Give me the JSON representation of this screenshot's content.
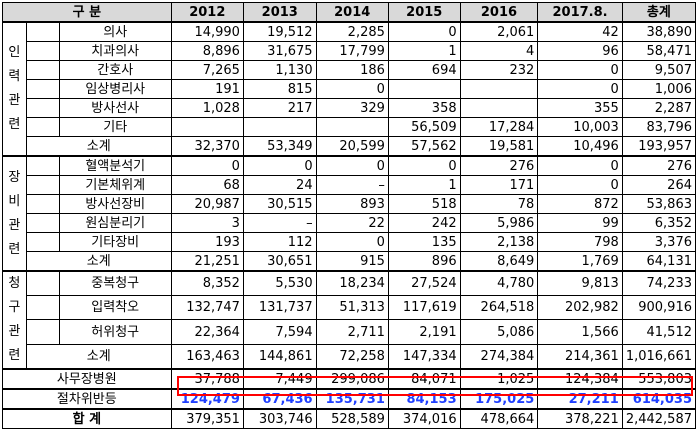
{
  "table": {
    "header": {
      "label": "구  분",
      "years": [
        "2012",
        "2013",
        "2014",
        "2015",
        "2016",
        "2017.8.",
        "총계"
      ]
    },
    "groups": [
      {
        "category_chars": [
          "인",
          "력",
          "관",
          "련"
        ],
        "rows": [
          {
            "label": "의사",
            "values": [
              "14,990",
              "19,512",
              "2,285",
              "0",
              "2,061",
              "42",
              "38,890"
            ]
          },
          {
            "label": "치과의사",
            "values": [
              "8,896",
              "31,675",
              "17,799",
              "1",
              "4",
              "96",
              "58,471"
            ]
          },
          {
            "label": "간호사",
            "values": [
              "7,265",
              "1,130",
              "186",
              "694",
              "232",
              "0",
              "9,507"
            ]
          },
          {
            "label": "임상병리사",
            "values": [
              "191",
              "815",
              "0",
              "",
              "",
              "0",
              "1,006"
            ]
          },
          {
            "label": "방사선사",
            "values": [
              "1,028",
              "217",
              "329",
              "358",
              "",
              "355",
              "2,287"
            ]
          },
          {
            "label": "기타",
            "values": [
              "",
              "",
              "",
              "56,509",
              "17,284",
              "10,003",
              "83,796"
            ]
          },
          {
            "label": "소계",
            "values": [
              "32,370",
              "53,349",
              "20,599",
              "57,562",
              "19,581",
              "10,496",
              "193,957"
            ]
          }
        ]
      },
      {
        "category_chars": [
          "장",
          "비",
          "관",
          "련"
        ],
        "rows": [
          {
            "label": "혈액분석기",
            "values": [
              "0",
              "0",
              "0",
              "0",
              "276",
              "0",
              "276"
            ]
          },
          {
            "label": "기본체위계",
            "values": [
              "68",
              "24",
              "–",
              "1",
              "171",
              "0",
              "264"
            ]
          },
          {
            "label": "방사선장비",
            "values": [
              "20,987",
              "30,515",
              "893",
              "518",
              "78",
              "872",
              "53,863"
            ]
          },
          {
            "label": "원심분리기",
            "values": [
              "3",
              "–",
              "22",
              "242",
              "5,986",
              "99",
              "6,352"
            ]
          },
          {
            "label": "기타장비",
            "values": [
              "193",
              "112",
              "0",
              "135",
              "2,138",
              "798",
              "3,376"
            ]
          },
          {
            "label": "소계",
            "values": [
              "21,251",
              "30,651",
              "915",
              "896",
              "8,649",
              "1,769",
              "64,131"
            ]
          }
        ]
      },
      {
        "category_chars": [
          "청",
          "구",
          "관",
          "련"
        ],
        "rows": [
          {
            "label": "중복청구",
            "values": [
              "8,352",
              "5,530",
              "18,234",
              "27,524",
              "4,780",
              "9,813",
              "74,233"
            ]
          },
          {
            "label": "입력착오",
            "values": [
              "132,747",
              "131,737",
              "51,313",
              "117,619",
              "264,518",
              "202,982",
              "900,916"
            ]
          },
          {
            "label": "허위청구",
            "values": [
              "22,364",
              "7,594",
              "2,711",
              "2,191",
              "5,086",
              "1,566",
              "41,512"
            ]
          },
          {
            "label": "소계",
            "values": [
              "163,463",
              "144,861",
              "72,258",
              "147,334",
              "274,384",
              "214,361",
              "1,016,661"
            ]
          }
        ]
      }
    ],
    "office": {
      "label": "사무장병원",
      "values": [
        "37,788",
        "7,449",
        "299,086",
        "84,071",
        "1,025",
        "124,384",
        "553,803"
      ]
    },
    "procedure": {
      "label": "절차위반등",
      "values": [
        "124,479",
        "67,436",
        "135,731",
        "84,153",
        "175,025",
        "27,211",
        "614,035"
      ]
    },
    "total": {
      "label": "합  계",
      "values": [
        "379,351",
        "303,746",
        "528,589",
        "374,016",
        "478,664",
        "378,221",
        "2,442,587"
      ]
    }
  },
  "colors": {
    "highlight_text": "#1f3fff",
    "highlight_border": "#ff0000",
    "header_bg": "#d9d9d9"
  }
}
